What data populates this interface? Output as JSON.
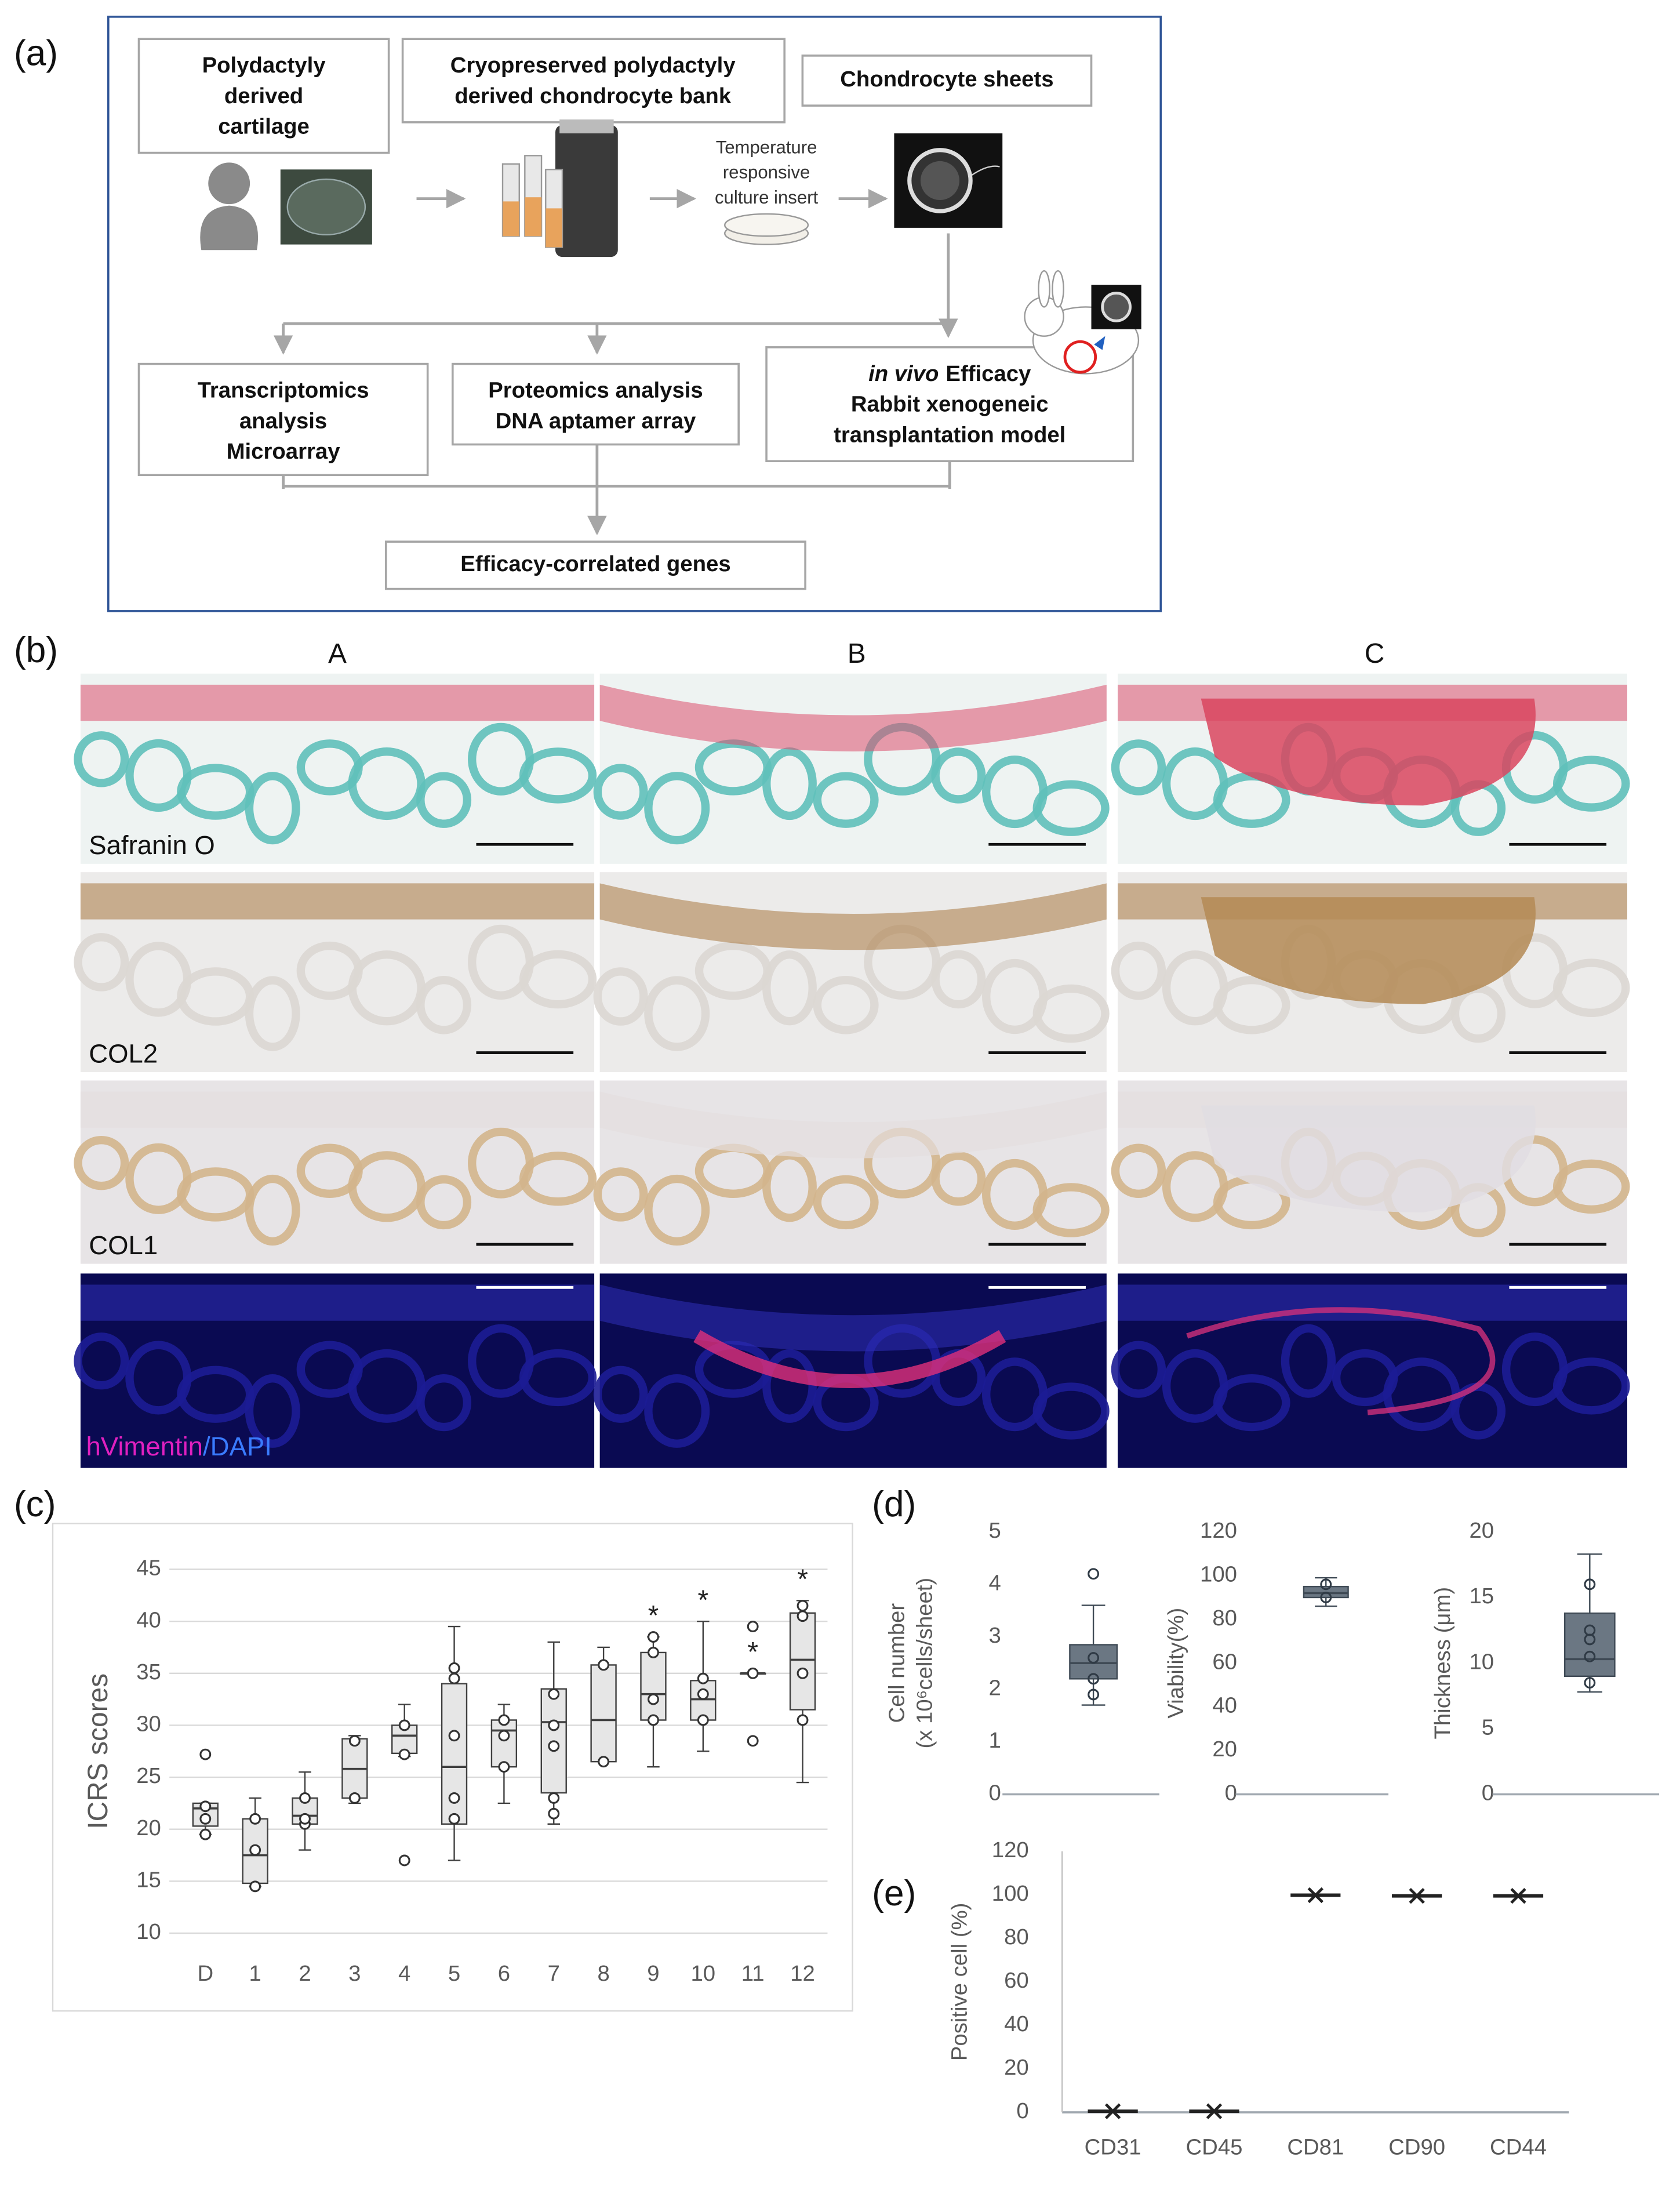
{
  "panels": {
    "a": "(a)",
    "b": "(b)",
    "c": "(c)",
    "d": "(d)",
    "e": "(e)"
  },
  "flowchart": {
    "boxes": [
      {
        "lines": [
          "Polydactyly",
          "derived",
          "cartilage"
        ]
      },
      {
        "lines": [
          "Cryopreserved polydactyly",
          "derived chondrocyte bank"
        ]
      },
      {
        "lines": [
          "Chondrocyte sheets"
        ]
      },
      {
        "lines": [
          "Transcriptomics",
          "analysis",
          "Microarray"
        ]
      },
      {
        "lines": [
          "Proteomics analysis",
          "DNA aptamer array"
        ]
      },
      {
        "lines": [
          {
            "italic": "in vivo",
            "text": "Efficacy"
          },
          "Rabbit xenogeneic",
          "transplantation model"
        ]
      },
      {
        "lines": [
          "Efficacy-correlated genes"
        ]
      }
    ],
    "insert_label": [
      "Temperature",
      "responsive",
      "culture insert"
    ]
  },
  "histology": {
    "columns": [
      "A",
      "B",
      "C"
    ],
    "rows": [
      "Safranin O",
      "COL2",
      "COL1",
      [
        "hVimentin",
        "/DAPI"
      ]
    ]
  },
  "chart_data": [
    {
      "type": "box",
      "ylabel": [
        "ICRS scores"
      ],
      "categories": [
        "D",
        "1",
        "2",
        "3",
        "4",
        "5",
        "6",
        "7",
        "8",
        "9",
        "10",
        "11",
        "12"
      ],
      "ylim": [
        10,
        45
      ],
      "yticks": [
        10,
        15,
        20,
        25,
        30,
        35,
        40,
        45
      ],
      "grid": true,
      "box_color": "#e6e6e6",
      "stroke_color": "#404040",
      "boxes": [
        {
          "min": 19.5,
          "q1": 20.3,
          "median": 22,
          "q3": 22.5,
          "max": 22.5,
          "points": [
            27.2,
            22.2,
            21,
            19.5
          ]
        },
        {
          "min": 14.5,
          "q1": 14.8,
          "median": 17.5,
          "q3": 21,
          "max": 23,
          "points": [
            14.5,
            18,
            21
          ]
        },
        {
          "min": 18,
          "q1": 20.5,
          "median": 21.3,
          "q3": 23,
          "max": 25.5,
          "points": [
            20.5,
            21,
            23
          ]
        },
        {
          "min": 22.5,
          "q1": 23,
          "median": 25.8,
          "q3": 28.7,
          "max": 29,
          "points": [
            23,
            28.5
          ]
        },
        {
          "min": 27,
          "q1": 27.3,
          "median": 29,
          "q3": 30,
          "max": 32,
          "points": [
            17,
            27.2,
            30
          ]
        },
        {
          "min": 17,
          "q1": 20.5,
          "median": 26,
          "q3": 34,
          "max": 39.5,
          "points": [
            21,
            23,
            29,
            34.5,
            35.5
          ]
        },
        {
          "min": 22.5,
          "q1": 26,
          "median": 29.5,
          "q3": 30.5,
          "max": 32,
          "points": [
            26,
            29,
            30.5
          ]
        },
        {
          "min": 20.5,
          "q1": 23.5,
          "median": 30.3,
          "q3": 33.5,
          "max": 38,
          "points": [
            21.5,
            23,
            28,
            30,
            33
          ]
        },
        {
          "min": 26.5,
          "q1": 26.5,
          "median": 30.5,
          "q3": 35.8,
          "max": 37.5,
          "points": [
            26.5,
            35.8
          ]
        },
        {
          "min": 26,
          "q1": 30.5,
          "median": 33,
          "q3": 37,
          "max": 38.5,
          "points": [
            30.5,
            32.5,
            37,
            38.5
          ]
        },
        {
          "min": 27.5,
          "q1": 30.5,
          "median": 32.5,
          "q3": 34.3,
          "max": 40,
          "points": [
            30.5,
            33,
            34.5
          ]
        },
        {
          "min": 35,
          "q1": 35,
          "median": 35,
          "q3": 35,
          "max": 35,
          "points": [
            28.5,
            35,
            39.5
          ]
        },
        {
          "min": 24.5,
          "q1": 31.5,
          "median": 36.3,
          "q3": 40.8,
          "max": 42,
          "points": [
            30.5,
            35,
            40.5,
            41.5
          ]
        }
      ],
      "annotations": [
        null,
        null,
        null,
        null,
        null,
        null,
        null,
        null,
        null,
        "*",
        "*",
        "*",
        "*"
      ]
    },
    {
      "type": "box",
      "ylabel": [
        "Cell number",
        "(x 10⁶cells/sheet)"
      ],
      "ylim": [
        0,
        5
      ],
      "yticks": [
        0,
        1,
        2,
        3,
        4,
        5
      ],
      "box_color": "#6b7783",
      "stroke_color": "#3f4a55",
      "boxes": [
        {
          "min": 1.7,
          "q1": 2.2,
          "median": 2.5,
          "q3": 2.85,
          "max": 3.6,
          "points": [
            4.2,
            2.6,
            2.2,
            1.9
          ]
        }
      ]
    },
    {
      "type": "box",
      "ylabel": [
        "Viability(%)"
      ],
      "ylim": [
        0,
        120
      ],
      "yticks": [
        0,
        20,
        40,
        60,
        80,
        100,
        120
      ],
      "box_color": "#6b7783",
      "stroke_color": "#3f4a55",
      "boxes": [
        {
          "min": 86,
          "q1": 90,
          "median": 92,
          "q3": 95,
          "max": 99,
          "points": [
            96,
            90
          ]
        }
      ]
    },
    {
      "type": "box",
      "ylabel": [
        "Thickness (μm)"
      ],
      "ylim": [
        0,
        20
      ],
      "yticks": [
        0,
        5,
        10,
        15,
        20
      ],
      "box_color": "#6b7783",
      "stroke_color": "#3f4a55",
      "boxes": [
        {
          "min": 7.8,
          "q1": 9,
          "median": 10.3,
          "q3": 13.8,
          "max": 18.3,
          "points": [
            16,
            12.5,
            11.8,
            10.5,
            8.5
          ]
        }
      ]
    },
    {
      "type": "dot",
      "ylabel": [
        "Positive cell (%)"
      ],
      "categories": [
        "CD31",
        "CD45",
        "CD81",
        "CD90",
        "CD44"
      ],
      "values": [
        0.5,
        0.5,
        99.8,
        99.5,
        99.5
      ],
      "ylim": [
        0,
        120
      ],
      "yticks": [
        0,
        20,
        40,
        60,
        80,
        100,
        120
      ],
      "color": "#222222"
    }
  ]
}
